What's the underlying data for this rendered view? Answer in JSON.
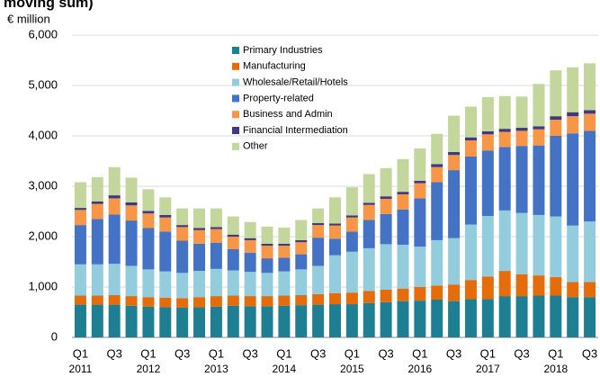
{
  "chart_data": {
    "type": "stacked-bar",
    "title": "moving sum)",
    "y_label": "€ million",
    "categories": [
      "Q1",
      null,
      "Q3",
      null,
      "Q1",
      null,
      "Q3",
      null,
      "Q1",
      null,
      "Q3",
      null,
      "Q1",
      null,
      "Q3",
      null,
      "Q1",
      null,
      "Q3",
      null,
      "Q1",
      null,
      "Q3",
      null,
      "Q1",
      null,
      "Q3",
      null,
      "Q1",
      null,
      "Q3"
    ],
    "years": [
      "2011",
      "2012",
      "2013",
      "2014",
      "2015",
      "2016",
      "2017",
      "2018"
    ],
    "ylim": [
      0,
      6000
    ],
    "yticks": [
      0,
      {
        "value": 1000,
        "label": "1,000"
      },
      {
        "value": 2000,
        "label": "2,000"
      },
      {
        "value": 3000,
        "label": "3,000"
      },
      {
        "value": 4000,
        "label": "4,000"
      },
      {
        "value": 5000,
        "label": "5,000"
      },
      {
        "value": 6000,
        "label": "6,000"
      }
    ],
    "grid": true,
    "series": [
      {
        "name": "Primary Industries",
        "color": "#1f7f92",
        "values": [
          650,
          650,
          650,
          630,
          610,
          600,
          590,
          600,
          610,
          630,
          620,
          620,
          630,
          640,
          650,
          660,
          660,
          680,
          700,
          720,
          730,
          750,
          720,
          760,
          760,
          820,
          820,
          830,
          830,
          800,
          800
        ]
      },
      {
        "name": "Manufacturing",
        "color": "#e46c0a",
        "values": [
          180,
          180,
          190,
          190,
          190,
          190,
          190,
          200,
          210,
          200,
          200,
          200,
          200,
          200,
          210,
          220,
          230,
          240,
          250,
          250,
          270,
          280,
          330,
          380,
          450,
          500,
          430,
          400,
          370,
          300,
          300
        ]
      },
      {
        "name": "Wholesale/Retail/Hotels",
        "color": "#93cddd",
        "values": [
          620,
          620,
          620,
          600,
          550,
          520,
          500,
          520,
          540,
          500,
          480,
          460,
          480,
          510,
          560,
          750,
          810,
          850,
          900,
          870,
          800,
          900,
          920,
          1100,
          1200,
          1200,
          1220,
          1200,
          1200,
          1120,
          1200
        ]
      },
      {
        "name": "Property-related",
        "color": "#4472c4",
        "values": [
          780,
          900,
          980,
          900,
          820,
          790,
          640,
          540,
          520,
          420,
          380,
          290,
          270,
          300,
          560,
          330,
          400,
          560,
          600,
          700,
          960,
          1150,
          1350,
          1350,
          1300,
          1260,
          1330,
          1380,
          1600,
          1830,
          1800
        ]
      },
      {
        "name": "Business and Admin",
        "color": "#f79646",
        "values": [
          300,
          300,
          320,
          300,
          290,
          280,
          270,
          270,
          270,
          250,
          250,
          250,
          240,
          240,
          250,
          260,
          280,
          300,
          300,
          300,
          300,
          300,
          300,
          320,
          320,
          300,
          300,
          320,
          320,
          340,
          340
        ]
      },
      {
        "name": "Financial Intermediation",
        "color": "#403880",
        "values": [
          40,
          50,
          60,
          60,
          50,
          50,
          40,
          40,
          40,
          40,
          40,
          40,
          40,
          40,
          40,
          40,
          40,
          40,
          50,
          50,
          50,
          60,
          60,
          60,
          60,
          60,
          60,
          60,
          70,
          80,
          70
        ]
      },
      {
        "name": "Other",
        "color": "#c3d69b",
        "values": [
          510,
          480,
          560,
          490,
          430,
          350,
          330,
          390,
          370,
          360,
          320,
          340,
          320,
          400,
          290,
          520,
          560,
          570,
          560,
          650,
          640,
          600,
          720,
          610,
          680,
          650,
          620,
          840,
          910,
          890,
          930
        ]
      }
    ]
  }
}
